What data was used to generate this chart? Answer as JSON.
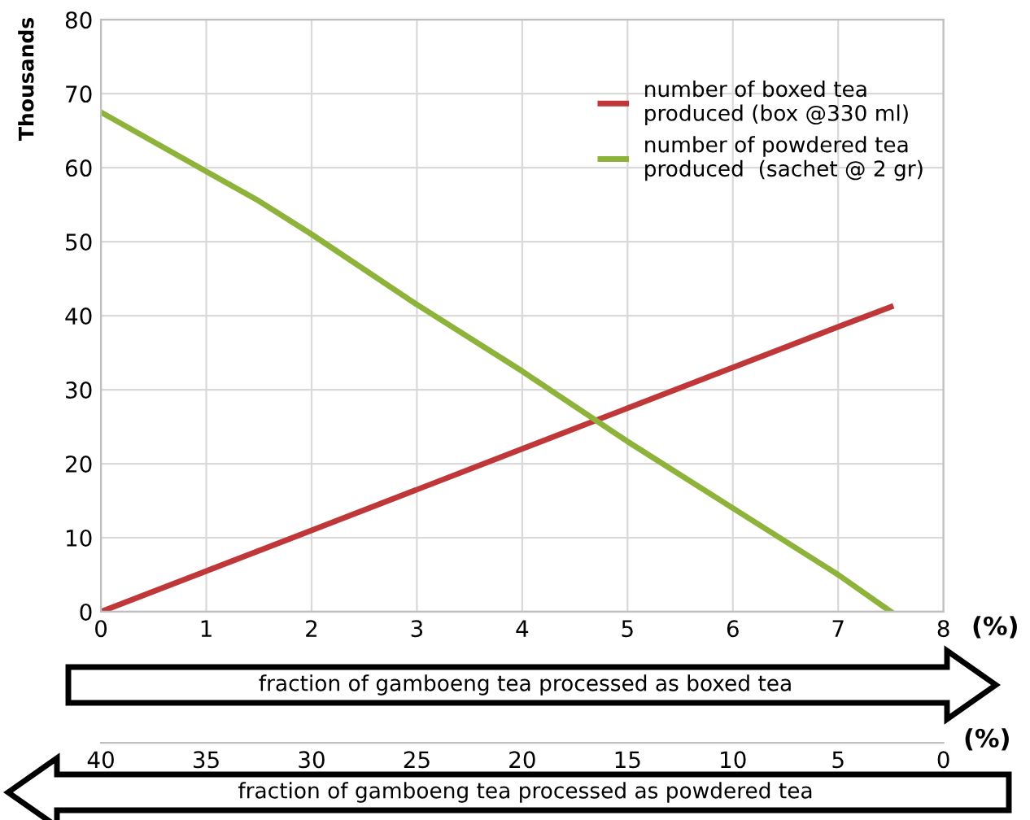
{
  "chart_data": {
    "type": "line",
    "ylabel": "Thousands",
    "xlabel": "fraction of gamboeng tea processed as boxed tea",
    "x2label": "fraction of gamboeng tea processed as powdered tea",
    "xlim": [
      0,
      8
    ],
    "xticks": [
      0,
      1,
      2,
      3,
      4,
      5,
      6,
      7,
      8
    ],
    "ylim": [
      0,
      80
    ],
    "yticks": [
      0,
      10,
      20,
      30,
      40,
      50,
      60,
      70,
      80
    ],
    "x2lim": [
      40,
      0
    ],
    "x2ticks": [
      40,
      35,
      30,
      25,
      20,
      15,
      10,
      5,
      0
    ],
    "grid": true,
    "legend": "top right",
    "marker": "none",
    "line_style": "solid",
    "annotations": [
      "(%)",
      "(%)"
    ],
    "series": [
      {
        "name": "number of boxed tea\nproduced (box @330 ml)",
        "color": "#c0373a",
        "x": [
          0,
          1,
          2,
          3,
          4,
          5,
          6,
          7,
          7.5
        ],
        "values": [
          0,
          5.5,
          11,
          16.5,
          22,
          27.5,
          33,
          38.5,
          41.2
        ]
      },
      {
        "name": "number of powdered tea\nproduced  (sachet @ 2 gr)",
        "color": "#8db33a",
        "x": [
          0,
          1,
          1.5,
          2,
          3,
          4,
          5,
          6,
          7,
          7.5
        ],
        "values": [
          67.5,
          59.5,
          55.5,
          51,
          41.5,
          32.5,
          23,
          14,
          5,
          0
        ]
      }
    ]
  }
}
